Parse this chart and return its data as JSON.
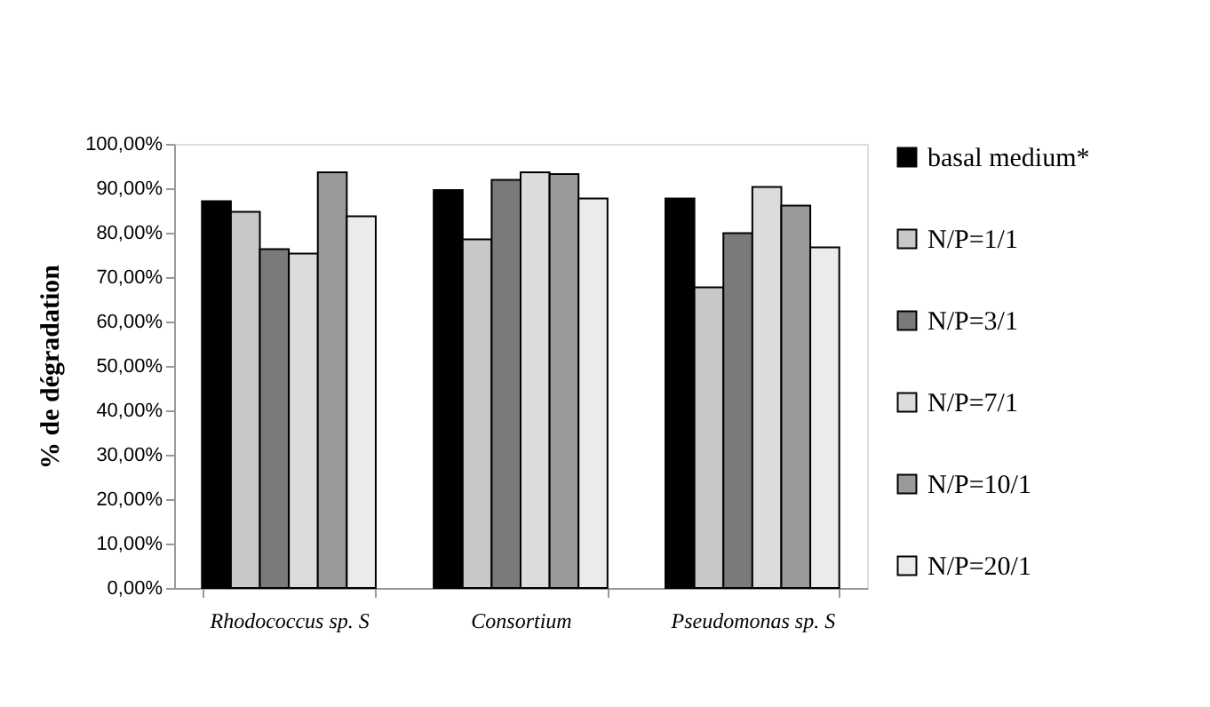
{
  "chart_data": {
    "type": "bar",
    "ylabel": "% de dégradation",
    "categories": [
      "Rhodococcus sp. S",
      "Consortium",
      "Pseudomonas sp. S"
    ],
    "series": [
      {
        "name": "basal medium*",
        "color": "#000000",
        "values": [
          87.1,
          89.6,
          87.7
        ]
      },
      {
        "name": "N/P=1/1",
        "color": "#c8c8c8",
        "values": [
          84.7,
          78.5,
          67.7
        ]
      },
      {
        "name": "N/P=3/1",
        "color": "#7a7a7a",
        "values": [
          76.3,
          91.9,
          79.9
        ]
      },
      {
        "name": "N/P=7/1",
        "color": "#dcdcdc",
        "values": [
          75.3,
          93.6,
          90.3
        ]
      },
      {
        "name": "N/P=10/1",
        "color": "#9a9a9a",
        "values": [
          93.6,
          93.2,
          86.1
        ]
      },
      {
        "name": "N/P=20/1",
        "color": "#ebebeb",
        "values": [
          83.7,
          87.7,
          76.7
        ]
      }
    ],
    "ylim": [
      0,
      100
    ],
    "yticks": [
      {
        "value": 0,
        "label": "0,00%"
      },
      {
        "value": 10,
        "label": "10,00%"
      },
      {
        "value": 20,
        "label": "20,00%"
      },
      {
        "value": 30,
        "label": "30,00%"
      },
      {
        "value": 40,
        "label": "40,00%"
      },
      {
        "value": 50,
        "label": "50,00%"
      },
      {
        "value": 60,
        "label": "60,00%"
      },
      {
        "value": 70,
        "label": "70,00%"
      },
      {
        "value": 80,
        "label": "80,00%"
      },
      {
        "value": 90,
        "label": "90,00%"
      },
      {
        "value": 100,
        "label": "100,00%"
      }
    ],
    "grid": false,
    "legend": "right"
  }
}
